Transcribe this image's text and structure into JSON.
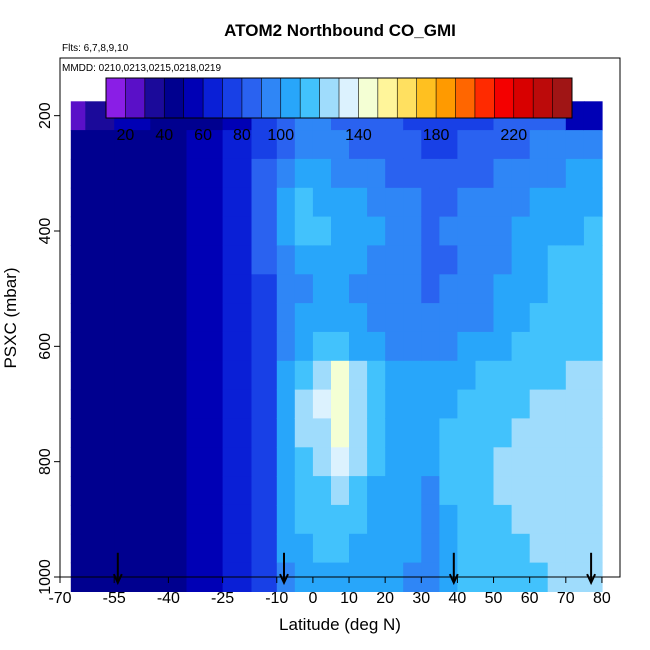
{
  "chart_data": {
    "type": "heatmap",
    "title": "ATOM2 Northbound CO_GMI",
    "subtitle_flights": "Flts: 6,7,8,9,10",
    "subtitle_dates": "MMDD: 0210,0213,0215,0218,0219",
    "xlabel": "Latitude (deg N)",
    "ylabel": "PSXC (mbar)",
    "xlim": [
      -70,
      85
    ],
    "ylim": [
      1000,
      100
    ],
    "x_ticks": [
      -70,
      -55,
      -40,
      -25,
      -10,
      0,
      10,
      20,
      30,
      40,
      50,
      60,
      70,
      80
    ],
    "x_tick_labels": [
      "-70",
      "-55",
      "-40",
      "-25",
      "-10",
      "0",
      "10",
      "20",
      "30",
      "40",
      "50",
      "60",
      "70",
      "80"
    ],
    "y_ticks": [
      200,
      400,
      600,
      800,
      1000
    ],
    "y_tick_labels": [
      "200",
      "400",
      "600",
      "800",
      "1000"
    ],
    "colorbar": {
      "ticks": [
        20,
        40,
        60,
        80,
        100,
        140,
        180,
        220
      ],
      "tick_labels": [
        "20",
        "40",
        "60",
        "80",
        "100",
        "140",
        "180",
        "220"
      ],
      "range": [
        10,
        250
      ],
      "bin_edges": [
        10,
        20,
        30,
        40,
        50,
        60,
        70,
        80,
        90,
        100,
        110,
        120,
        130,
        140,
        150,
        160,
        170,
        180,
        190,
        200,
        210,
        220,
        230,
        240,
        250
      ],
      "bin_colors": [
        "#8a1ee6",
        "#5a10c8",
        "#1b0a9a",
        "#00008f",
        "#0000b5",
        "#0a1fd6",
        "#1840e6",
        "#2a62f0",
        "#2f86f6",
        "#28a6fa",
        "#42c2fc",
        "#9fdcfc",
        "#dcf2fe",
        "#f4ffd4",
        "#fff59a",
        "#ffe060",
        "#ffc020",
        "#ff9a00",
        "#ff6600",
        "#ff2a00",
        "#f40000",
        "#d80000",
        "#bc0a0a",
        "#a01515"
      ]
    },
    "flight_arrow_latitudes": [
      -54,
      -8,
      39,
      77
    ],
    "lat_bands": [
      {
        "lat": [
          -67,
          -63
        ],
        "values": [
          25,
          40,
          40,
          40,
          40,
          40,
          40,
          40,
          40,
          40,
          40,
          40,
          40,
          40,
          40,
          40,
          40
        ]
      },
      {
        "lat": [
          -63,
          -55
        ],
        "values": [
          30,
          40,
          40,
          40,
          40,
          40,
          40,
          40,
          40,
          40,
          40,
          40,
          40,
          40,
          40,
          40,
          40
        ]
      },
      {
        "lat": [
          -55,
          -45
        ],
        "values": [
          55,
          45,
          42,
          42,
          42,
          42,
          42,
          42,
          42,
          42,
          42,
          42,
          42,
          42,
          42,
          42,
          42
        ]
      },
      {
        "lat": [
          -45,
          -35
        ],
        "values": [
          45,
          45,
          45,
          45,
          48,
          48,
          48,
          48,
          48,
          48,
          48,
          48,
          48,
          48,
          48,
          48,
          48
        ]
      },
      {
        "lat": [
          -35,
          -25
        ],
        "values": [
          48,
          52,
          52,
          52,
          52,
          52,
          52,
          55,
          55,
          55,
          55,
          55,
          55,
          55,
          55,
          55,
          55
        ]
      },
      {
        "lat": [
          -25,
          -17
        ],
        "values": [
          55,
          65,
          65,
          62,
          62,
          62,
          62,
          62,
          62,
          62,
          62,
          62,
          62,
          62,
          62,
          62,
          62
        ]
      },
      {
        "lat": [
          -17,
          -10
        ],
        "values": [
          70,
          78,
          82,
          88,
          85,
          80,
          78,
          78,
          78,
          78,
          78,
          78,
          78,
          78,
          78,
          78,
          78
        ]
      },
      {
        "lat": [
          -10,
          -5
        ],
        "values": [
          85,
          88,
          92,
          100,
          102,
          98,
          92,
          92,
          95,
          102,
          105,
          105,
          102,
          102,
          100,
          100,
          98
        ]
      },
      {
        "lat": [
          -5,
          0
        ],
        "values": [
          92,
          95,
          102,
          112,
          115,
          105,
          98,
          100,
          105,
          118,
          122,
          120,
          118,
          112,
          110,
          108,
          105
        ]
      },
      {
        "lat": [
          0,
          5
        ],
        "values": [
          90,
          92,
          100,
          108,
          110,
          102,
          100,
          102,
          110,
          125,
          130,
          128,
          125,
          118,
          112,
          110,
          105
        ]
      },
      {
        "lat": [
          5,
          10
        ],
        "values": [
          88,
          90,
          98,
          105,
          108,
          102,
          100,
          104,
          112,
          140,
          145,
          140,
          138,
          128,
          118,
          112,
          108
        ]
      },
      {
        "lat": [
          10,
          15
        ],
        "values": [
          85,
          88,
          95,
          102,
          105,
          100,
          98,
          100,
          108,
          125,
          128,
          125,
          122,
          115,
          110,
          108,
          105
        ]
      },
      {
        "lat": [
          15,
          20
        ],
        "values": [
          82,
          85,
          92,
          98,
          100,
          98,
          96,
          98,
          102,
          112,
          115,
          115,
          112,
          108,
          105,
          104,
          102
        ]
      },
      {
        "lat": [
          20,
          25
        ],
        "values": [
          80,
          82,
          88,
          92,
          95,
          94,
          92,
          94,
          96,
          105,
          108,
          108,
          105,
          104,
          102,
          102,
          100
        ]
      },
      {
        "lat": [
          25,
          30
        ],
        "values": [
          78,
          80,
          85,
          90,
          90,
          90,
          90,
          92,
          94,
          102,
          104,
          104,
          102,
          100,
          100,
          100,
          98
        ]
      },
      {
        "lat": [
          30,
          35
        ],
        "values": [
          75,
          78,
          82,
          85,
          88,
          88,
          88,
          90,
          92,
          100,
          102,
          102,
          100,
          98,
          98,
          98,
          96
        ]
      },
      {
        "lat": [
          35,
          40
        ],
        "values": [
          72,
          76,
          80,
          85,
          90,
          88,
          90,
          92,
          96,
          104,
          108,
          112,
          114,
          110,
          108,
          106,
          104
        ]
      },
      {
        "lat": [
          40,
          45
        ],
        "values": [
          75,
          80,
          85,
          90,
          94,
          92,
          94,
          96,
          100,
          108,
          112,
          116,
          118,
          116,
          114,
          112,
          110
        ]
      },
      {
        "lat": [
          45,
          50
        ],
        "values": [
          78,
          82,
          88,
          92,
          96,
          94,
          96,
          98,
          102,
          110,
          114,
          116,
          118,
          118,
          116,
          114,
          112
        ]
      },
      {
        "lat": [
          50,
          55
        ],
        "values": [
          80,
          85,
          90,
          95,
          98,
          98,
          100,
          102,
          106,
          112,
          115,
          118,
          120,
          120,
          118,
          116,
          114
        ]
      },
      {
        "lat": [
          55,
          60
        ],
        "values": [
          82,
          88,
          92,
          98,
          102,
          102,
          104,
          106,
          110,
          114,
          118,
          120,
          122,
          122,
          120,
          118,
          116
        ]
      },
      {
        "lat": [
          60,
          65
        ],
        "values": [
          85,
          90,
          95,
          100,
          105,
          106,
          108,
          110,
          112,
          116,
          120,
          122,
          124,
          124,
          122,
          120,
          118
        ]
      },
      {
        "lat": [
          65,
          70
        ],
        "values": [
          88,
          92,
          98,
          102,
          108,
          110,
          112,
          114,
          116,
          118,
          122,
          124,
          126,
          126,
          124,
          122,
          120
        ]
      },
      {
        "lat": [
          70,
          75
        ],
        "values": [
          50,
          95,
          100,
          105,
          108,
          112,
          114,
          116,
          118,
          120,
          122,
          124,
          126,
          126,
          124,
          122,
          120
        ]
      },
      {
        "lat": [
          75,
          80
        ],
        "values": [
          55,
          98,
          102,
          106,
          110,
          112,
          114,
          116,
          118,
          120,
          122,
          124,
          126,
          126,
          124,
          122,
          120
        ]
      }
    ],
    "pressure_levels": [
      200,
      250,
      300,
      350,
      400,
      450,
      500,
      550,
      600,
      650,
      700,
      750,
      800,
      850,
      900,
      950,
      1000
    ]
  }
}
